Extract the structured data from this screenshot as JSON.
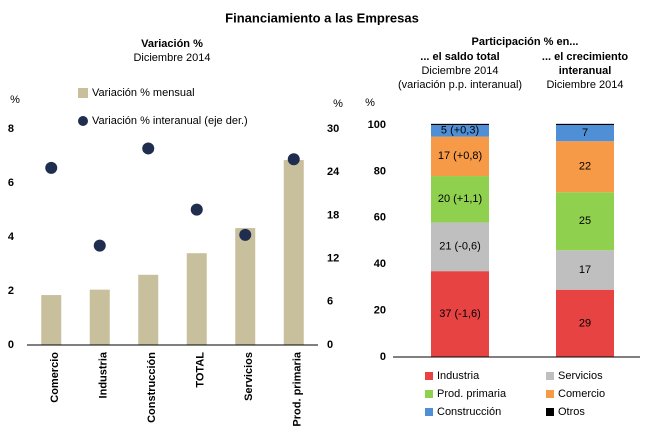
{
  "title": "Financiamiento a las Empresas",
  "chart_data": [
    {
      "type": "combo",
      "title": "Variación %",
      "subtitle": "Diciembre 2014",
      "y_label": "%",
      "y2_label": "%",
      "categories": [
        "Comercio",
        "Industria",
        "Construcción",
        "TOTAL",
        "Servicios",
        "Prod. primaria"
      ],
      "series": [
        {
          "name": "Variación % mensual",
          "color": "#c8bf9c",
          "type": "bar",
          "values": [
            1.85,
            2.05,
            2.6,
            3.4,
            4.33,
            6.85
          ]
        },
        {
          "name": "Variación % interanual (eje der.)",
          "color": "#1f2d4e",
          "type": "scatter",
          "axis": "y2",
          "values": [
            24.6,
            13.8,
            27.3,
            18.8,
            15.3,
            25.8
          ]
        }
      ],
      "ylim": [
        0,
        8
      ],
      "yticks": [
        0,
        2,
        4,
        6,
        8
      ],
      "y2lim": [
        0,
        30
      ],
      "y2ticks": [
        0,
        6,
        12,
        18,
        24,
        30
      ],
      "legend": "upper left"
    },
    {
      "type": "stacked_bar",
      "title": "Participación % en...",
      "categories": [
        "... el saldo total",
        "... el crecimiento interanual"
      ],
      "category_notes": [
        [
          "Diciembre 2014",
          "(variación p.p. interanual)"
        ],
        [
          "Diciembre 2014"
        ]
      ],
      "y_label": "%",
      "ylim": [
        0,
        100
      ],
      "yticks": [
        0,
        20,
        40,
        60,
        80,
        100
      ],
      "series": [
        {
          "name": "Industria",
          "color": "#e84343",
          "values": [
            37,
            29
          ],
          "value_labels": [
            "37 (-1,6)",
            "29"
          ]
        },
        {
          "name": "Servicios",
          "color": "#bfbfbf",
          "values": [
            21,
            17
          ],
          "value_labels": [
            "21 (-0,6)",
            "17"
          ]
        },
        {
          "name": "Prod. primaria",
          "color": "#8fd14f",
          "values": [
            20,
            25
          ],
          "value_labels": [
            "20 (+1,1)",
            "25"
          ]
        },
        {
          "name": "Comercio",
          "color": "#f79a48",
          "values": [
            17,
            22
          ],
          "value_labels": [
            "17 (+0,8)",
            "22"
          ]
        },
        {
          "name": "Construcción",
          "color": "#4f8fd6",
          "values": [
            5,
            7
          ],
          "value_labels": [
            "5 (+0,3)",
            "7"
          ]
        },
        {
          "name": "Otros",
          "color": "#000000",
          "values": [
            0.5,
            0.5
          ]
        }
      ],
      "legend": "lower center"
    }
  ]
}
